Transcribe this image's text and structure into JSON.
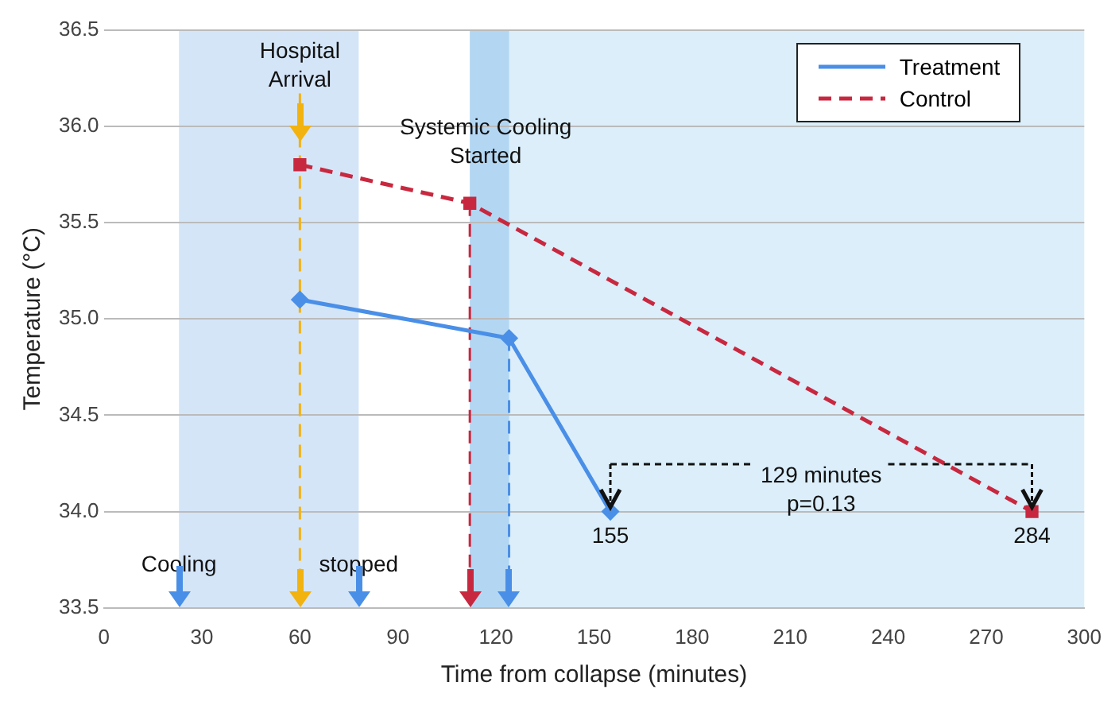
{
  "chart_data": {
    "type": "line",
    "xlabel": "Time from collapse (minutes)",
    "ylabel": "Temperature (°C)",
    "xlim": [
      0,
      300
    ],
    "xticks": [
      0,
      30,
      60,
      90,
      120,
      150,
      180,
      210,
      240,
      270,
      300
    ],
    "ylim": [
      33.5,
      36.5
    ],
    "yticks": [
      {
        "value": 33.5,
        "label": "33.5"
      },
      {
        "value": 34,
        "label": "34.0"
      },
      {
        "value": 34.5,
        "label": "34.5"
      },
      {
        "value": 35,
        "label": "35.0"
      },
      {
        "value": 35.5,
        "label": "35.5"
      },
      {
        "value": 36,
        "label": "36.0"
      },
      {
        "value": 36.5,
        "label": "36.5"
      }
    ],
    "grid": "y",
    "legend": "top right",
    "series": [
      {
        "name": "Treatment",
        "color": "#4a8fe7",
        "x": [
          60,
          124,
          155
        ],
        "values": [
          35.1,
          34.9,
          34.0
        ],
        "marker": "diamond",
        "line_style": "solid"
      },
      {
        "name": "Control",
        "color": "#c8283f",
        "x": [
          60,
          112,
          284
        ],
        "values": [
          35.8,
          35.6,
          34.0
        ],
        "marker": "square",
        "line_style": "dashed"
      }
    ],
    "bands": [
      {
        "axis": "x",
        "from": 23,
        "to": 78,
        "color": "#d5e5f8"
      },
      {
        "axis": "x",
        "from": 112,
        "to": 300,
        "color": "#dbeefa",
        "label": "Systemic Cooling Started"
      },
      {
        "axis": "x",
        "from": 112,
        "to": 124,
        "color": "#b3d7f3"
      }
    ],
    "ref_lines": [
      {
        "axis": "x",
        "value": 60,
        "label": "Hospital Arrival",
        "color": "#f2b20f",
        "line_style": "dashed"
      },
      {
        "axis": "x",
        "value": 112,
        "color": "#c8283f",
        "line_style": "dashed"
      },
      {
        "axis": "x",
        "value": 124,
        "color": "#4a8fe7",
        "line_style": "dashed"
      }
    ],
    "annotations": [
      {
        "text": "Cooling",
        "x": 23,
        "y": 33.72
      },
      {
        "text": "stopped",
        "x": 78,
        "y": 33.72
      },
      "129 minutes",
      "p=0.13",
      {
        "text": "155",
        "x": 155,
        "y": 34.0
      },
      {
        "text": "284",
        "x": 284,
        "y": 34.0
      }
    ]
  }
}
